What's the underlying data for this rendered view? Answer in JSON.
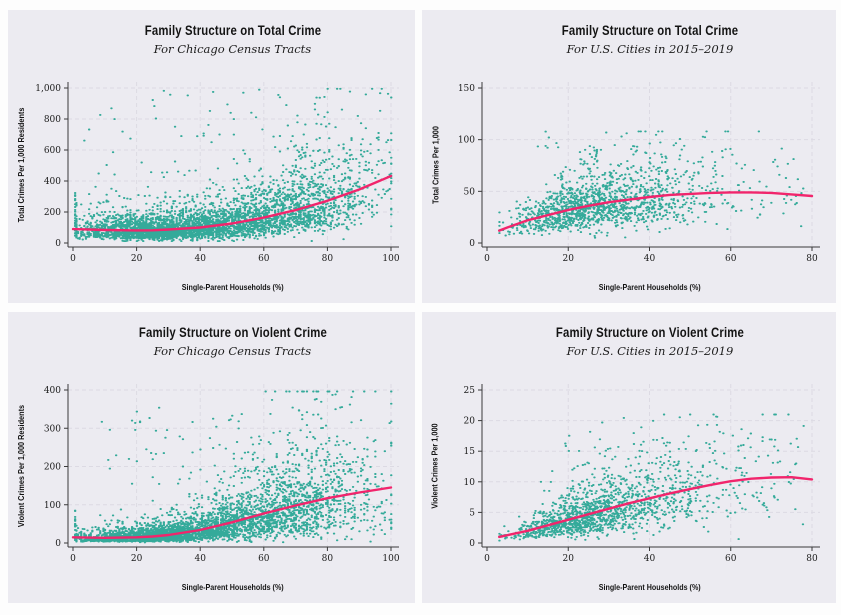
{
  "figure": {
    "background": "#fdfdfd",
    "panel_background": "#ECEBF1"
  },
  "theme": {
    "point_color": "#2AA795",
    "trend_color": "#F1256C",
    "grid_color": "#DCDAE3",
    "axis_color": "#3a3a3a",
    "text_color": "#141414"
  },
  "chart_data": [
    {
      "type": "scatter",
      "title": "Family Structure on Total Crime",
      "subtitle": "For Chicago Census Tracts",
      "xlabel": "Single-Parent Households (%)",
      "ylabel": "Total Crimes Per 1,000 Residents",
      "xlim": [
        0,
        100
      ],
      "ylim": [
        0,
        1000
      ],
      "x_ticks": [
        0,
        20,
        40,
        60,
        80,
        100
      ],
      "y_ticks": [
        0,
        200,
        400,
        600,
        800,
        1000
      ],
      "grid": true,
      "legend": "none",
      "trend": [
        [
          0,
          90
        ],
        [
          10,
          84
        ],
        [
          20,
          81
        ],
        [
          25,
          82
        ],
        [
          30,
          87
        ],
        [
          40,
          100
        ],
        [
          50,
          126
        ],
        [
          60,
          164
        ],
        [
          70,
          212
        ],
        [
          80,
          272
        ],
        [
          90,
          345
        ],
        [
          100,
          432
        ]
      ],
      "scatter": {
        "n": 4200,
        "seed": 101,
        "x_clusters": [
          {
            "w": 0.38,
            "mean": 22,
            "sd": 10
          },
          {
            "w": 0.3,
            "mean": 45,
            "sd": 12
          },
          {
            "w": 0.28,
            "mean": 70,
            "sd": 13
          },
          {
            "w": 0.04,
            "min": 1,
            "max": 100
          }
        ],
        "x_clip": [
          1,
          100
        ],
        "x_quantize": 0.5,
        "sigma": 0.52,
        "y_clip": [
          12,
          995
        ],
        "outlier_frac": 0.02,
        "outlier_range": [
          280,
          985
        ],
        "low_frac": 0.03,
        "low_base": 8,
        "strip": {
          "x": 0.6,
          "n": 26,
          "y": [
            40,
            330
          ]
        }
      }
    },
    {
      "type": "scatter",
      "title": "Family Structure on Total Crime",
      "subtitle": "For U.S. Cities in 2015–2019",
      "xlabel": "Single-Parent Households (%)",
      "ylabel": "Total Crimes Per 1,000",
      "xlim": [
        0,
        80
      ],
      "ylim": [
        0,
        150
      ],
      "x_ticks": [
        0,
        20,
        40,
        60,
        80
      ],
      "y_ticks": [
        0,
        50,
        100,
        150
      ],
      "grid": true,
      "legend": "none",
      "trend": [
        [
          3,
          12
        ],
        [
          5,
          15
        ],
        [
          10,
          22
        ],
        [
          15,
          27
        ],
        [
          20,
          32
        ],
        [
          25,
          36
        ],
        [
          30,
          39.5
        ],
        [
          35,
          42
        ],
        [
          40,
          44.5
        ],
        [
          45,
          46.5
        ],
        [
          50,
          47.5
        ],
        [
          55,
          48.5
        ],
        [
          60,
          49
        ],
        [
          65,
          49
        ],
        [
          70,
          48.5
        ],
        [
          75,
          47
        ],
        [
          80,
          45.5
        ]
      ],
      "scatter": {
        "n": 1500,
        "seed": 202,
        "x_clusters": [
          {
            "w": 0.55,
            "mean": 22,
            "sd": 8
          },
          {
            "w": 0.33,
            "mean": 38,
            "sd": 11
          },
          {
            "w": 0.12,
            "min": 8,
            "max": 78
          }
        ],
        "x_clip": [
          3,
          80
        ],
        "x_quantize": null,
        "sigma": 0.4,
        "y_clip": [
          4,
          108
        ],
        "outlier_frac": 0.006,
        "outlier_range": [
          85,
          108
        ],
        "low_frac": 0.02,
        "low_base": 5,
        "strip": null
      }
    },
    {
      "type": "scatter",
      "title": "Family Structure on Violent Crime",
      "subtitle": "For Chicago Census Tracts",
      "xlabel": "Single-Parent Households (%)",
      "ylabel": "Violent Crimes Per 1,000 Residents",
      "xlim": [
        0,
        100
      ],
      "ylim": [
        0,
        400
      ],
      "x_ticks": [
        0,
        20,
        40,
        60,
        80,
        100
      ],
      "y_ticks": [
        0,
        100,
        200,
        300,
        400
      ],
      "grid": true,
      "legend": "none",
      "trend": [
        [
          0,
          15
        ],
        [
          10,
          13.5
        ],
        [
          20,
          15
        ],
        [
          25,
          17
        ],
        [
          30,
          21
        ],
        [
          40,
          34
        ],
        [
          50,
          54
        ],
        [
          60,
          77
        ],
        [
          70,
          98
        ],
        [
          80,
          117
        ],
        [
          90,
          132
        ],
        [
          100,
          145
        ]
      ],
      "scatter": {
        "n": 4200,
        "seed": 303,
        "x_clusters": [
          {
            "w": 0.38,
            "mean": 22,
            "sd": 10
          },
          {
            "w": 0.3,
            "mean": 45,
            "sd": 12
          },
          {
            "w": 0.28,
            "mean": 70,
            "sd": 13
          },
          {
            "w": 0.04,
            "min": 1,
            "max": 100
          }
        ],
        "x_clip": [
          1,
          100
        ],
        "x_quantize": 0.5,
        "sigma": 0.6,
        "y_clip": [
          1.5,
          396
        ],
        "outlier_frac": 0.015,
        "outlier_range": [
          150,
          360
        ],
        "low_frac": 0.04,
        "low_base": 2,
        "strip": {
          "x": 0.6,
          "n": 22,
          "y": [
            4,
            85
          ]
        }
      }
    },
    {
      "type": "scatter",
      "title": "Family Structure on Violent Crime",
      "subtitle": "For U.S. Cities in 2015–2019",
      "xlabel": "Single-Parent Households (%)",
      "ylabel": "Violent Crimes Per 1,000",
      "xlim": [
        0,
        80
      ],
      "ylim": [
        0,
        25
      ],
      "x_ticks": [
        0,
        20,
        40,
        60,
        80
      ],
      "y_ticks": [
        0,
        5,
        10,
        15,
        20,
        25
      ],
      "grid": true,
      "legend": "none",
      "trend": [
        [
          3,
          1
        ],
        [
          10,
          2
        ],
        [
          15,
          2.9
        ],
        [
          20,
          3.8
        ],
        [
          25,
          4.7
        ],
        [
          30,
          5.6
        ],
        [
          35,
          6.5
        ],
        [
          40,
          7.3
        ],
        [
          45,
          8.1
        ],
        [
          50,
          8.8
        ],
        [
          55,
          9.5
        ],
        [
          60,
          10.1
        ],
        [
          65,
          10.5
        ],
        [
          70,
          10.7
        ],
        [
          75,
          10.75
        ],
        [
          80,
          10.4
        ]
      ],
      "scatter": {
        "n": 1600,
        "seed": 404,
        "x_clusters": [
          {
            "w": 0.55,
            "mean": 22,
            "sd": 8
          },
          {
            "w": 0.33,
            "mean": 38,
            "sd": 11
          },
          {
            "w": 0.12,
            "min": 8,
            "max": 78
          }
        ],
        "x_clip": [
          3,
          80
        ],
        "x_quantize": null,
        "sigma": 0.46,
        "y_clip": [
          0.4,
          21
        ],
        "outlier_frac": 0.008,
        "outlier_range": [
          13.5,
          20.8
        ],
        "low_frac": 0.02,
        "low_base": 0.5,
        "strip": null
      }
    }
  ]
}
